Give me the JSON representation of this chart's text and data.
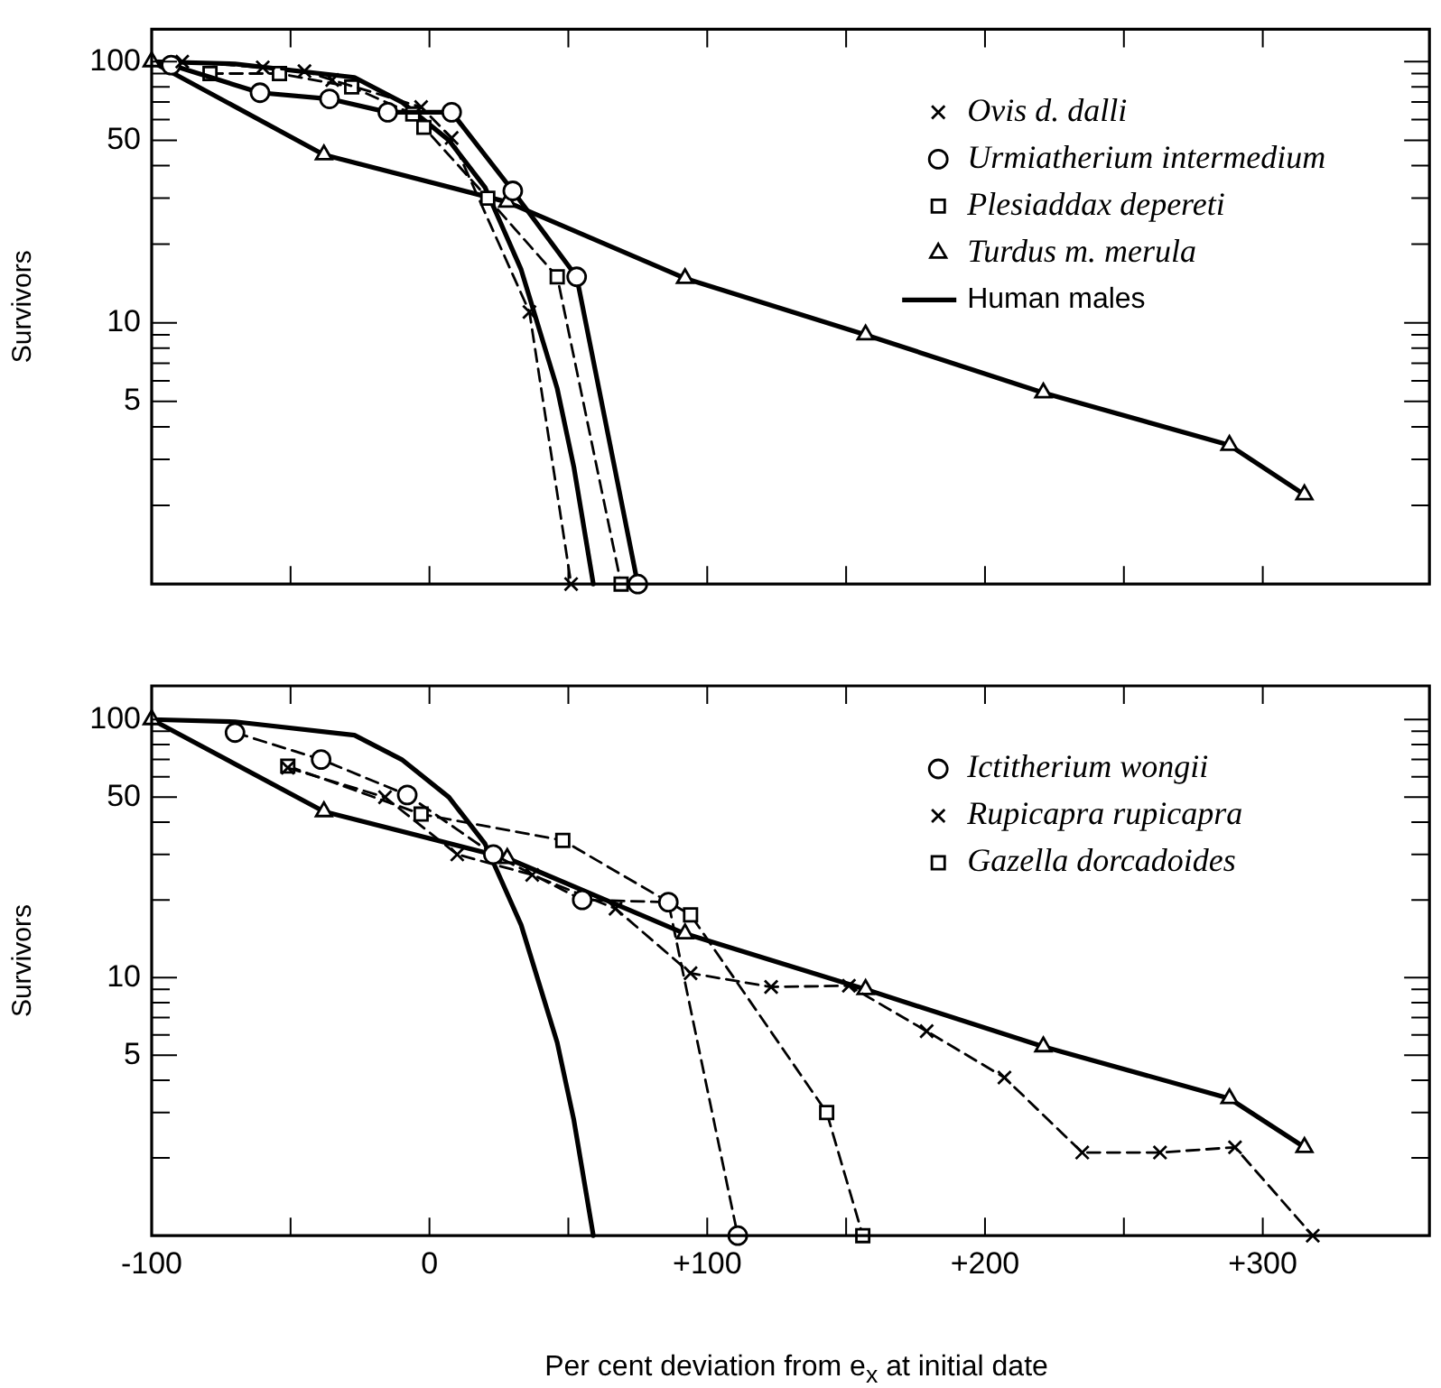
{
  "chart_data": [
    {
      "type": "line",
      "ylabel": "Survivors",
      "log": true,
      "legend": "top right",
      "tick_labels": "y",
      "xlim": [
        -100,
        360
      ],
      "xticks": [
        {
          "value": -100,
          "label": null
        },
        {
          "value": -50,
          "label": null
        },
        {
          "value": 0,
          "label": null
        },
        {
          "value": 50,
          "label": null
        },
        {
          "value": 100,
          "label": null
        },
        {
          "value": 150,
          "label": null
        },
        {
          "value": 200,
          "label": null
        },
        {
          "value": 250,
          "label": null
        },
        {
          "value": 300,
          "label": null
        }
      ],
      "ylim": [
        1,
        133
      ],
      "yticks": [
        {
          "value": 2,
          "label": null
        },
        {
          "value": 3,
          "label": null
        },
        {
          "value": 4,
          "label": null
        },
        5,
        {
          "value": 6,
          "label": null
        },
        {
          "value": 7,
          "label": null
        },
        {
          "value": 8,
          "label": null
        },
        {
          "value": 9,
          "label": null
        },
        10,
        {
          "value": 20,
          "label": null
        },
        {
          "value": 30,
          "label": null
        },
        {
          "value": 40,
          "label": null
        },
        50,
        {
          "value": 60,
          "label": null
        },
        {
          "value": 70,
          "label": null
        },
        {
          "value": 80,
          "label": null
        },
        {
          "value": 90,
          "label": null
        },
        100
      ],
      "series": [
        {
          "name": "Ovis d. dalli",
          "color": "#000000",
          "marker": "cross",
          "line_style": "dashed",
          "x": [
            -89,
            -60,
            -45,
            -35,
            -3,
            8,
            36,
            51
          ],
          "values": [
            100,
            95,
            92,
            85,
            67,
            51,
            11,
            1
          ]
        },
        {
          "name": "Urmiatherium intermedium",
          "color": "#000000",
          "marker": "circle",
          "line_style": "solid",
          "x": [
            -93,
            -61,
            -36,
            -15,
            8,
            30,
            53,
            75
          ],
          "values": [
            97,
            76,
            72,
            64,
            64,
            32,
            15,
            1
          ]
        },
        {
          "name": "Plesiaddax depereti",
          "color": "#000000",
          "marker": "square",
          "line_style": "dashed",
          "x": [
            -79,
            -54,
            -28,
            -6,
            -2,
            21,
            46,
            69
          ],
          "values": [
            90,
            90,
            80,
            63,
            56,
            30,
            15,
            1
          ]
        },
        {
          "name": "Turdus m. merula",
          "color": "#000000",
          "marker": "triangle",
          "line_style": "solid",
          "x": [
            -100,
            -38,
            28,
            92,
            157,
            221,
            288,
            315
          ],
          "values": [
            100,
            44,
            29,
            14.8,
            9,
            5.4,
            3.4,
            2.2
          ]
        },
        {
          "name": "Human males",
          "color": "#000000",
          "marker": "none",
          "line_style": "solid",
          "x": [
            -100,
            -70,
            -27,
            -10,
            7,
            20,
            33,
            46,
            52,
            59
          ],
          "values": [
            100,
            98,
            87,
            70,
            50,
            33,
            16,
            5.6,
            2.8,
            1
          ]
        }
      ]
    },
    {
      "type": "line",
      "xlabel": "Per cent deviation from e$_{x}$ at initial date",
      "ylabel": "Survivors",
      "log": true,
      "legend": "top right",
      "xlim": [
        -100,
        360
      ],
      "xticks": [
        {
          "value": -100,
          "label": "-100"
        },
        {
          "value": -50,
          "label": null
        },
        0,
        {
          "value": 50,
          "label": null
        },
        {
          "value": 100,
          "label": "+100"
        },
        {
          "value": 150,
          "label": null
        },
        {
          "value": 200,
          "label": "+200"
        },
        {
          "value": 250,
          "label": null
        },
        {
          "value": 300,
          "label": "+300"
        }
      ],
      "ylim": [
        1,
        135
      ],
      "yticks": [
        {
          "value": 2,
          "label": null
        },
        {
          "value": 3,
          "label": null
        },
        {
          "value": 4,
          "label": null
        },
        5,
        {
          "value": 6,
          "label": null
        },
        {
          "value": 7,
          "label": null
        },
        {
          "value": 8,
          "label": null
        },
        {
          "value": 9,
          "label": null
        },
        10,
        {
          "value": 20,
          "label": null
        },
        {
          "value": 30,
          "label": null
        },
        {
          "value": 40,
          "label": null
        },
        50,
        {
          "value": 60,
          "label": null
        },
        {
          "value": 70,
          "label": null
        },
        {
          "value": 80,
          "label": null
        },
        {
          "value": 90,
          "label": null
        },
        100
      ],
      "series": [
        {
          "name": "Ictitherium wongii",
          "color": "#000000",
          "marker": "circle",
          "line_style": "dashed",
          "x": [
            -70,
            -39,
            -8,
            23,
            55,
            86,
            111
          ],
          "values": [
            89,
            70,
            51,
            30,
            20,
            19.6,
            1
          ]
        },
        {
          "name": "Rupicapra rupicapra",
          "color": "#000000",
          "marker": "cross",
          "line_style": "dashed",
          "x": [
            -51,
            -16,
            10,
            37,
            67,
            94,
            123,
            151,
            179,
            207,
            235,
            263,
            290,
            318
          ],
          "values": [
            65,
            50,
            30,
            25,
            18.5,
            10.4,
            9.2,
            9.3,
            6.2,
            4.1,
            2.1,
            2.1,
            2.2,
            1
          ]
        },
        {
          "name": "Gazella dorcadoides",
          "color": "#000000",
          "marker": "square",
          "line_style": "dashed",
          "x": [
            -51,
            -3,
            48,
            94,
            143,
            156
          ],
          "values": [
            66,
            43,
            34,
            17.5,
            3,
            1
          ]
        },
        {
          "color": "#000000",
          "marker": "triangle",
          "line_style": "solid",
          "x": [
            -100,
            -38,
            28,
            92,
            157,
            221,
            288,
            315
          ],
          "values": [
            100,
            44,
            29,
            14.8,
            9,
            5.4,
            3.4,
            2.2
          ]
        },
        {
          "color": "#000000",
          "marker": "none",
          "line_style": "solid",
          "x": [
            -100,
            -70,
            -27,
            -10,
            7,
            20,
            33,
            46,
            52,
            59
          ],
          "values": [
            100,
            98,
            87,
            70,
            50,
            33,
            16,
            5.6,
            2.8,
            1
          ]
        }
      ]
    }
  ]
}
